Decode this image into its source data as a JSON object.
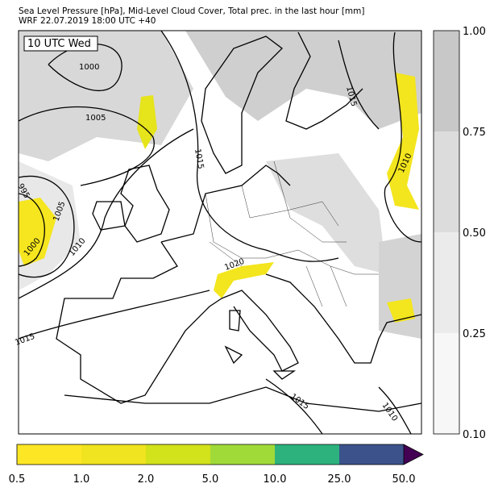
{
  "header": {
    "line1": "Sea Level Pressure [hPa], Mid-Level Cloud Cover, Total prec. in the last hour [mm]",
    "line2": "WRF 22.07.2019 18:00 UTC +40"
  },
  "map": {
    "time_label": "10 UTC Wed",
    "contour_labels": [
      "1000",
      "1005",
      "1015",
      "1015",
      "995",
      "1005",
      "1000",
      "1010",
      "1010",
      "1020",
      "1015",
      "1015",
      "1010"
    ]
  },
  "cloud_colorbar": {
    "ticks": [
      "0.10",
      "0.25",
      "0.50",
      "0.75",
      "1.00"
    ]
  },
  "precip_colorbar": {
    "ticks": [
      "0.5",
      "1.0",
      "2.0",
      "5.0",
      "10.0",
      "25.0",
      "50.0"
    ]
  }
}
